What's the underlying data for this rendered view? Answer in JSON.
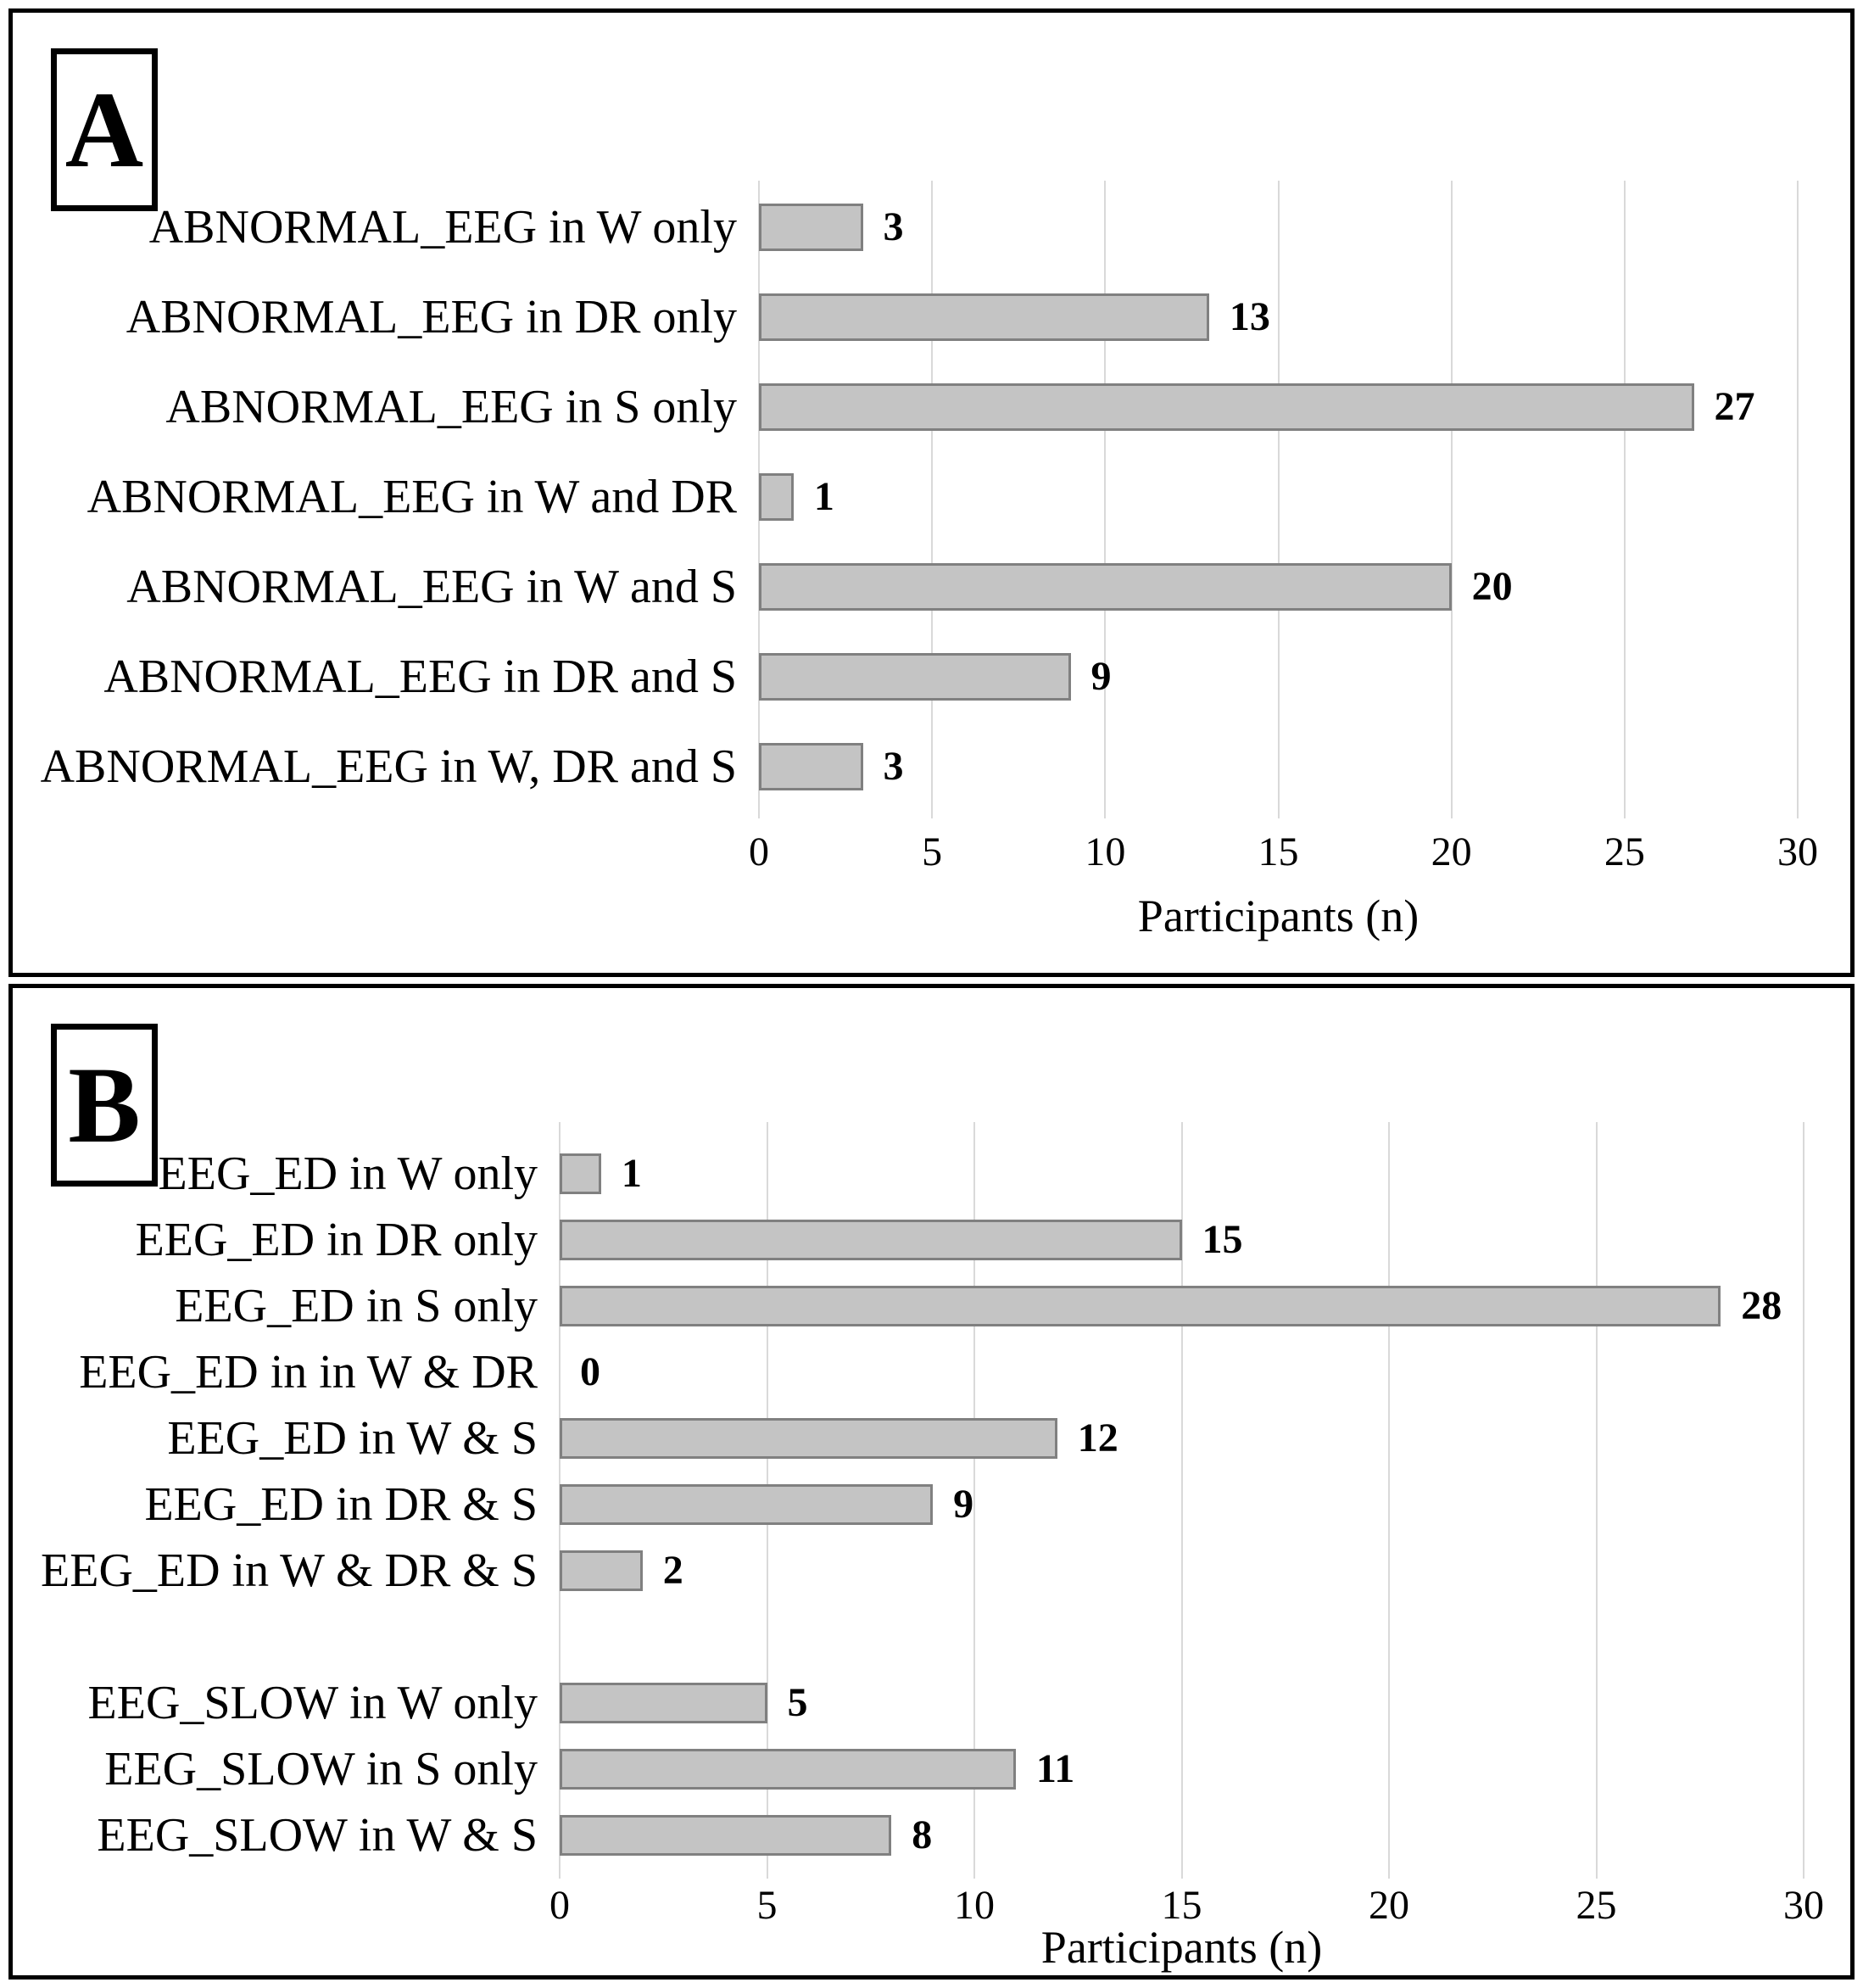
{
  "panels": [
    {
      "label": "A",
      "xlabel": "Participants (n)"
    },
    {
      "label": "B",
      "xlabel": "Participants (n)"
    }
  ],
  "colors": {
    "bar_fill": "#c4c4c4",
    "bar_border": "#808080",
    "gridline": "#d9d9d9",
    "panel_border": "#000000"
  },
  "chart_data": [
    {
      "type": "bar",
      "orientation": "horizontal",
      "panel": "A",
      "categories": [
        "ABNORMAL_EEG in W only",
        "ABNORMAL_EEG in DR only",
        "ABNORMAL_EEG in S only",
        "ABNORMAL_EEG in W and DR",
        "ABNORMAL_EEG in W and S",
        "ABNORMAL_EEG in DR and S",
        "ABNORMAL_EEG in W, DR and S"
      ],
      "values": [
        3,
        13,
        27,
        1,
        20,
        9,
        3
      ],
      "xlabel": "Participants (n)",
      "xlim": [
        0,
        30
      ],
      "xticks": [
        0,
        5,
        10,
        15,
        20,
        25,
        30
      ],
      "grid": true,
      "data_labels": true,
      "legend": false
    },
    {
      "type": "bar",
      "orientation": "horizontal",
      "panel": "B",
      "categories": [
        "EEG_ED in W only",
        "EEG_ED in DR only",
        "EEG_ED in S only",
        "EEG_ED in in W & DR",
        "EEG_ED in W & S",
        "EEG_ED in DR & S",
        "EEG_ED in W & DR & S",
        "EEG_SLOW in W only",
        "EEG_SLOW in S only",
        "EEG_SLOW in W & S"
      ],
      "values": [
        1,
        15,
        28,
        0,
        12,
        9,
        2,
        5,
        11,
        8
      ],
      "gap_after_index": 6,
      "xlabel": "Participants (n)",
      "xlim": [
        0,
        30
      ],
      "xticks": [
        0,
        5,
        10,
        15,
        20,
        25,
        30
      ],
      "grid": true,
      "data_labels": true,
      "legend": false
    }
  ]
}
